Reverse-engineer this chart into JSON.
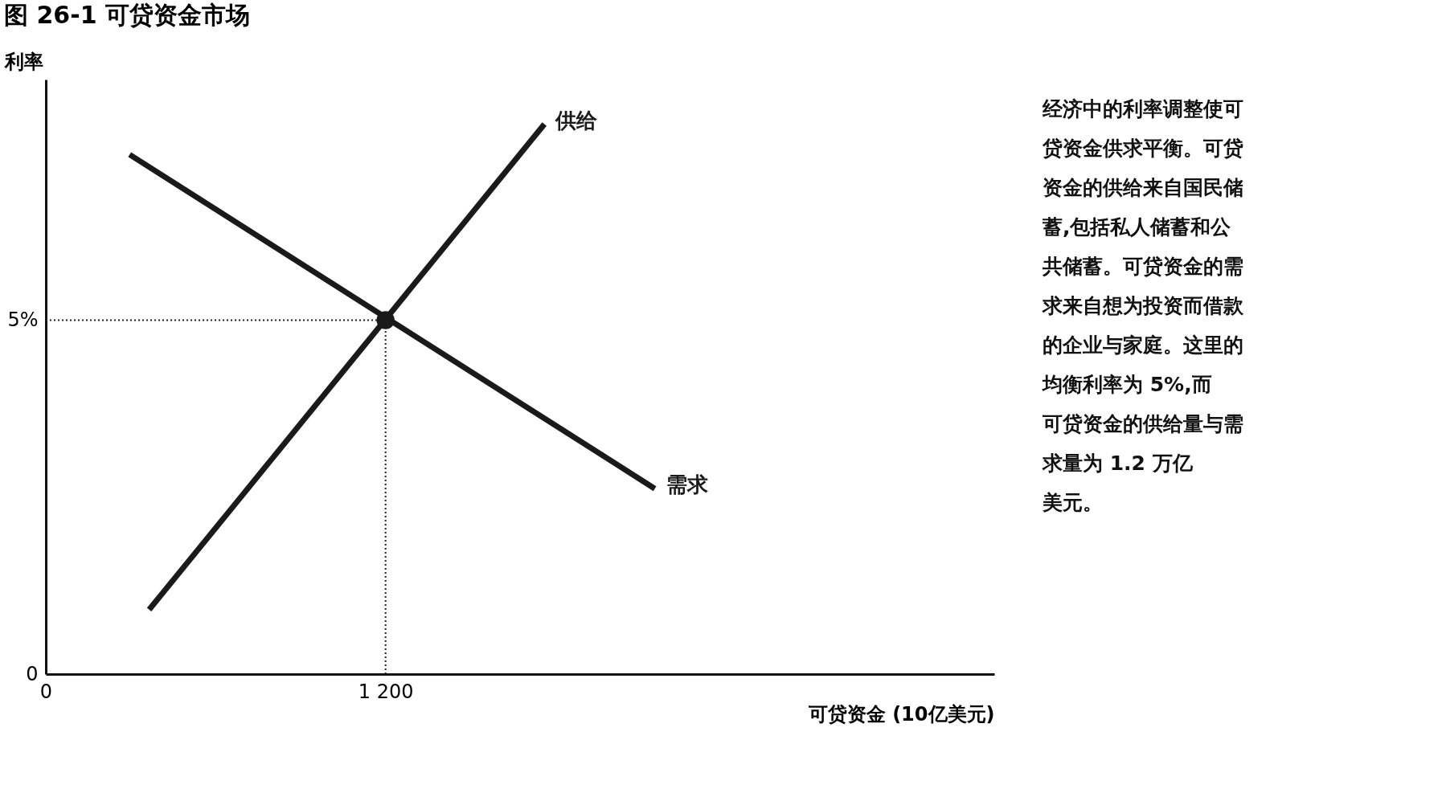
{
  "chart_data": {
    "type": "line",
    "title": "图 26-1  可贷资金市场",
    "xlabel": "可贷资金 (10亿美元)",
    "ylabel": "利率",
    "series": [
      {
        "name": "供给",
        "color": "#1a1a1a",
        "x": [
          365,
          1761
        ],
        "values": [
          0.91,
          7.77
        ]
      },
      {
        "name": "需求",
        "color": "#1a1a1a",
        "x": [
          296,
          2151
        ],
        "values": [
          7.34,
          2.62
        ]
      },
      {
        "type": "scatter",
        "color": "#1a1a1a",
        "x": [
          1200
        ],
        "values": [
          5
        ]
      }
    ],
    "xlim": [
      0,
      3350
    ],
    "ylim": [
      0,
      8.4
    ],
    "xticks": [
      0,
      {
        "value": 1200,
        "label": "1 200"
      }
    ],
    "yticks": [
      0,
      {
        "value": 5,
        "label": "5%"
      }
    ],
    "ref_lines": [
      {
        "axis": "y",
        "value": 5,
        "line_style": "dotted"
      },
      {
        "axis": "x",
        "value": 1200,
        "line_style": "dotted"
      }
    ],
    "annotations": [
      "经济中的利率调整使可贷资金供求平衡。可贷资金的供给来自国民储蓄,包括私人储蓄和公共储蓄。可贷资金的需求来自想为投资而借款的企业与家庭。这里的均衡利率为 5%,而可贷资金的供给量与需求量为 1.2 万亿美元。"
    ],
    "line_style": "solid"
  }
}
